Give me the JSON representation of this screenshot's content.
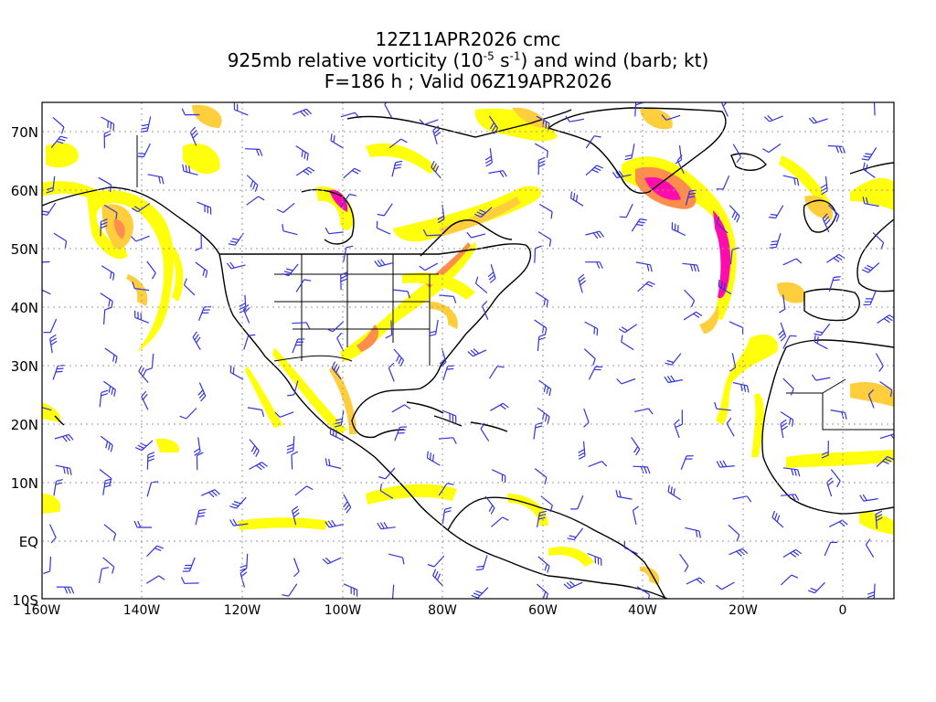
{
  "title": {
    "line1": "12Z11APR2026 cmc",
    "line2_prefix": "925mb relative vorticity (10",
    "line2_exp1": "-5",
    "line2_mid": " s",
    "line2_exp2": "-1",
    "line2_suffix": ") and wind (barb; kt)",
    "line3": "F=186 h ; Valid 06Z19APR2026"
  },
  "axes": {
    "lat_labels": [
      "70N",
      "60N",
      "50N",
      "40N",
      "30N",
      "20N",
      "10N",
      "EQ",
      "10S"
    ],
    "lon_labels": [
      "160W",
      "140W",
      "120W",
      "100W",
      "80W",
      "60W",
      "40W",
      "20W",
      "0"
    ]
  },
  "colors": {
    "vort_low": "#ffff00",
    "vort_mid": "#ffcc33",
    "vort_high": "#ff8844",
    "vort_max": "#ff00aa",
    "coastline": "#000000",
    "barb": "#3333dd",
    "grid": "#999999"
  },
  "features": {
    "projection": "cylindrical",
    "lon_range": [
      "160W",
      "10E"
    ],
    "lat_range": [
      "10S",
      "75N"
    ]
  }
}
